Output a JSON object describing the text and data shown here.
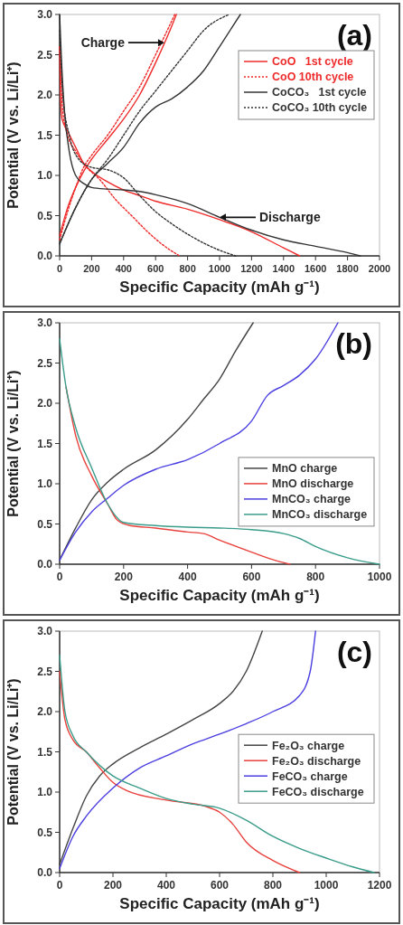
{
  "chart_data": [
    {
      "type": "line",
      "xlabel": "Specific Capacity (mAh g⁻¹)",
      "ylabel": "Potential (V vs. Li/Li⁺)",
      "xlim": [
        0,
        2000
      ],
      "ylim": [
        0,
        3
      ],
      "xticks": [
        0,
        200,
        400,
        600,
        800,
        1000,
        1200,
        1400,
        1600,
        1800,
        2000
      ],
      "yticks": [
        {
          "value": 0,
          "label": "0.0"
        },
        0.5,
        {
          "value": 1,
          "label": "1.0"
        },
        1.5,
        {
          "value": 2,
          "label": "2.0"
        },
        2.5,
        {
          "value": 3,
          "label": "3.0"
        }
      ],
      "legend": "top right",
      "grid": false,
      "annotations": [
        "(a)",
        {
          "text": "Charge",
          "x": 655,
          "y": 2.65
        },
        {
          "text": "Discharge",
          "x": 1000,
          "y": 0.48
        }
      ],
      "series": [
        {
          "name": "CoO   1st cycle",
          "color": "#ee2a2a",
          "line_style": "solid",
          "x": [
            0,
            5,
            15,
            50,
            100,
            150,
            200,
            300,
            400,
            500,
            600,
            800,
            1000,
            1200,
            1400,
            1500
          ],
          "values": [
            2.6,
            2.0,
            1.7,
            1.55,
            1.35,
            1.15,
            1.05,
            0.92,
            0.82,
            0.75,
            0.68,
            0.58,
            0.45,
            0.3,
            0.1,
            0.0
          ]
        },
        {
          "color": "#ee2a2a",
          "line_style": "solid",
          "x": [
            0,
            50,
            100,
            150,
            200,
            300,
            400,
            500,
            600,
            700,
            730
          ],
          "values": [
            0.25,
            0.6,
            0.85,
            1.05,
            1.2,
            1.45,
            1.7,
            2.0,
            2.4,
            2.85,
            3.0
          ]
        },
        {
          "name": "CoO 10th cycle",
          "color": "#ee2a2a",
          "line_style": "dotted",
          "x": [
            0,
            20,
            50,
            100,
            170,
            250,
            350,
            450,
            550,
            650,
            750
          ],
          "values": [
            2.6,
            1.8,
            1.5,
            1.3,
            1.1,
            0.95,
            0.7,
            0.5,
            0.3,
            0.13,
            0.0
          ]
        },
        {
          "color": "#ee2a2a",
          "line_style": "dotted",
          "x": [
            0,
            50,
            100,
            150,
            200,
            300,
            400,
            500,
            600,
            720
          ],
          "values": [
            0.2,
            0.55,
            0.85,
            1.1,
            1.25,
            1.5,
            1.8,
            2.1,
            2.5,
            3.0
          ]
        },
        {
          "name": "CoCO₃   1st cycle",
          "color": "#333333",
          "line_style": "solid",
          "x": [
            0,
            10,
            30,
            60,
            100,
            150,
            200,
            300,
            400,
            500,
            600,
            800,
            1000,
            1200,
            1400,
            1600,
            1800,
            1880
          ],
          "values": [
            3.0,
            2.5,
            1.8,
            1.3,
            1.0,
            0.9,
            0.85,
            0.83,
            0.82,
            0.8,
            0.76,
            0.65,
            0.48,
            0.32,
            0.2,
            0.12,
            0.04,
            0.0
          ]
        },
        {
          "color": "#333333",
          "line_style": "solid",
          "x": [
            0,
            100,
            200,
            300,
            400,
            500,
            600,
            700,
            800,
            900,
            1000,
            1130
          ],
          "values": [
            0.15,
            0.6,
            0.95,
            1.15,
            1.35,
            1.65,
            1.85,
            1.95,
            2.1,
            2.3,
            2.6,
            3.0
          ]
        },
        {
          "name": "CoCO₃ 10th cycle",
          "color": "#333333",
          "line_style": "dotted",
          "x": [
            0,
            20,
            60,
            120,
            200,
            300,
            400,
            500,
            600,
            700,
            800,
            900,
            1000,
            1100
          ],
          "values": [
            2.8,
            2.0,
            1.5,
            1.2,
            1.1,
            1.07,
            0.97,
            0.75,
            0.55,
            0.4,
            0.27,
            0.16,
            0.07,
            0.0
          ]
        },
        {
          "color": "#333333",
          "line_style": "dotted",
          "x": [
            0,
            100,
            200,
            300,
            400,
            500,
            600,
            700,
            800,
            900,
            1060
          ],
          "values": [
            0.15,
            0.6,
            0.95,
            1.2,
            1.5,
            1.8,
            2.05,
            2.3,
            2.55,
            2.8,
            3.0
          ]
        }
      ]
    },
    {
      "type": "line",
      "xlabel": "Specific Capacity (mAh g⁻¹)",
      "ylabel": "Potential (V vs. Li/Li⁺)",
      "xlim": [
        0,
        1000
      ],
      "ylim": [
        0,
        3
      ],
      "xticks": [
        0,
        200,
        400,
        600,
        800,
        1000
      ],
      "yticks": [
        {
          "value": 0,
          "label": "0.0"
        },
        0.5,
        {
          "value": 1,
          "label": "1.0"
        },
        1.5,
        {
          "value": 2,
          "label": "2.0"
        },
        2.5,
        {
          "value": 3,
          "label": "3.0"
        }
      ],
      "legend": "right",
      "grid": false,
      "annotations": [
        "(b)"
      ],
      "series": [
        {
          "name": "MnO charge",
          "color": "#444444",
          "x": [
            0,
            50,
            100,
            150,
            200,
            300,
            400,
            450,
            500,
            550,
            605
          ],
          "values": [
            0.05,
            0.45,
            0.8,
            1.02,
            1.18,
            1.42,
            1.8,
            2.05,
            2.3,
            2.65,
            3.0
          ]
        },
        {
          "name": "MnO discharge",
          "color": "#e8413c",
          "x": [
            20,
            50,
            100,
            150,
            180,
            220,
            300,
            400,
            450,
            500,
            600,
            680,
            720
          ],
          "values": [
            2.2,
            1.6,
            1.1,
            0.75,
            0.55,
            0.48,
            0.45,
            0.4,
            0.38,
            0.3,
            0.15,
            0.04,
            0.0
          ]
        },
        {
          "name": "MnCO₃ charge",
          "color": "#4b3fe0",
          "x": [
            0,
            50,
            100,
            150,
            200,
            300,
            400,
            500,
            600,
            650,
            700,
            750,
            800,
            870
          ],
          "values": [
            0.05,
            0.4,
            0.65,
            0.82,
            0.98,
            1.18,
            1.3,
            1.5,
            1.78,
            2.1,
            2.22,
            2.35,
            2.55,
            3.0
          ]
        },
        {
          "name": "MnCO₃ discharge",
          "color": "#3a9c8a",
          "x": [
            0,
            20,
            50,
            100,
            150,
            200,
            300,
            400,
            500,
            600,
            700,
            750,
            800,
            900,
            1000
          ],
          "values": [
            2.8,
            2.2,
            1.7,
            1.2,
            0.75,
            0.52,
            0.48,
            0.46,
            0.45,
            0.43,
            0.38,
            0.32,
            0.22,
            0.08,
            0.0
          ]
        }
      ]
    },
    {
      "type": "line",
      "xlabel": "Specific Capacity (mAh g⁻¹)",
      "ylabel": "Potential (V vs. Li/Li⁺)",
      "xlim": [
        0,
        1200
      ],
      "ylim": [
        0,
        3
      ],
      "xticks": [
        0,
        200,
        400,
        600,
        800,
        1000,
        1200
      ],
      "yticks": [
        {
          "value": 0,
          "label": "0.0"
        },
        0.5,
        {
          "value": 1,
          "label": "1.0"
        },
        1.5,
        {
          "value": 2,
          "label": "2.0"
        },
        2.5,
        {
          "value": 3,
          "label": "3.0"
        }
      ],
      "legend": "right",
      "grid": false,
      "annotations": [
        "(c)"
      ],
      "series": [
        {
          "name": "Fe₂O₃ charge",
          "color": "#444444",
          "x": [
            0,
            50,
            100,
            150,
            200,
            300,
            400,
            500,
            600,
            650,
            700,
            760
          ],
          "values": [
            0.1,
            0.55,
            0.95,
            1.2,
            1.35,
            1.55,
            1.72,
            1.9,
            2.1,
            2.25,
            2.5,
            3.0
          ]
        },
        {
          "name": "Fe₂O₃ discharge",
          "color": "#e8413c",
          "x": [
            0,
            20,
            50,
            100,
            150,
            200,
            250,
            400,
            550,
            600,
            650,
            700,
            800,
            900
          ],
          "values": [
            2.5,
            1.9,
            1.65,
            1.5,
            1.3,
            1.12,
            1.02,
            0.9,
            0.82,
            0.75,
            0.6,
            0.38,
            0.15,
            0.0
          ]
        },
        {
          "name": "FeCO₃ charge",
          "color": "#4b3fe0",
          "x": [
            0,
            50,
            100,
            200,
            300,
            400,
            500,
            600,
            700,
            800,
            900,
            940,
            960
          ],
          "values": [
            0.05,
            0.45,
            0.7,
            1.05,
            1.3,
            1.45,
            1.6,
            1.72,
            1.85,
            2.0,
            2.2,
            2.5,
            3.0
          ]
        },
        {
          "name": "FeCO₃ discharge",
          "color": "#3a9c8a",
          "x": [
            0,
            20,
            50,
            100,
            200,
            300,
            400,
            500,
            600,
            700,
            800,
            900,
            1000,
            1100,
            1180
          ],
          "values": [
            2.7,
            2.0,
            1.7,
            1.5,
            1.2,
            1.05,
            0.92,
            0.85,
            0.8,
            0.65,
            0.45,
            0.3,
            0.18,
            0.07,
            0.0
          ]
        }
      ]
    }
  ]
}
